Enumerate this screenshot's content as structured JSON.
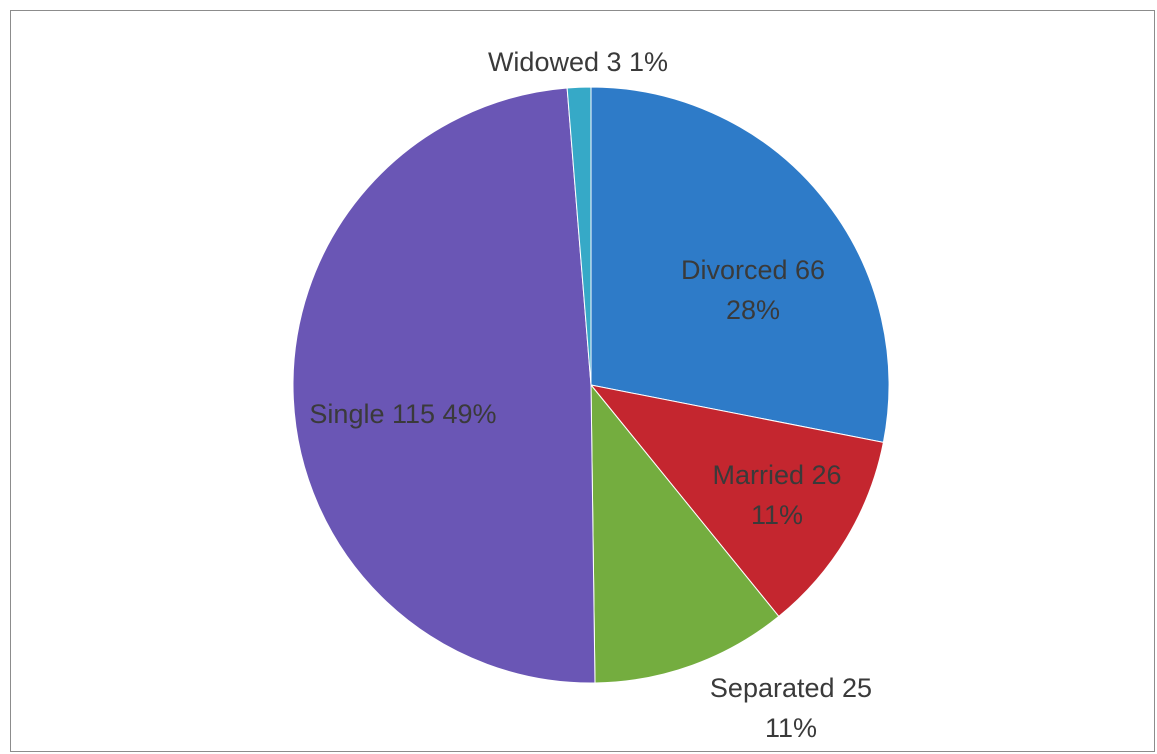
{
  "chart_data": {
    "type": "pie",
    "title": "",
    "slices": [
      {
        "label": "Divorced",
        "value": 66,
        "percent": "28%",
        "color": "#2e7bc8",
        "text_line1": "Divorced 66",
        "text_line2": "28%"
      },
      {
        "label": "Married",
        "value": 26,
        "percent": "11%",
        "color": "#c4262f",
        "text_line1": "Married 26",
        "text_line2": "11%"
      },
      {
        "label": "Separated",
        "value": 25,
        "percent": "11%",
        "color": "#74ad3f",
        "text_line1": "Separated 25",
        "text_line2": "11%"
      },
      {
        "label": "Single",
        "value": 115,
        "percent": "49%",
        "color": "#6a56b5",
        "text_line1": "Single 115 49%",
        "text_line2": ""
      },
      {
        "label": "Widowed",
        "value": 3,
        "percent": "1%",
        "color": "#36a9c7",
        "text_line1": "Widowed 3 1%",
        "text_line2": ""
      }
    ],
    "start_angle": "12 o'clock",
    "direction": "clockwise",
    "legend": "none"
  }
}
